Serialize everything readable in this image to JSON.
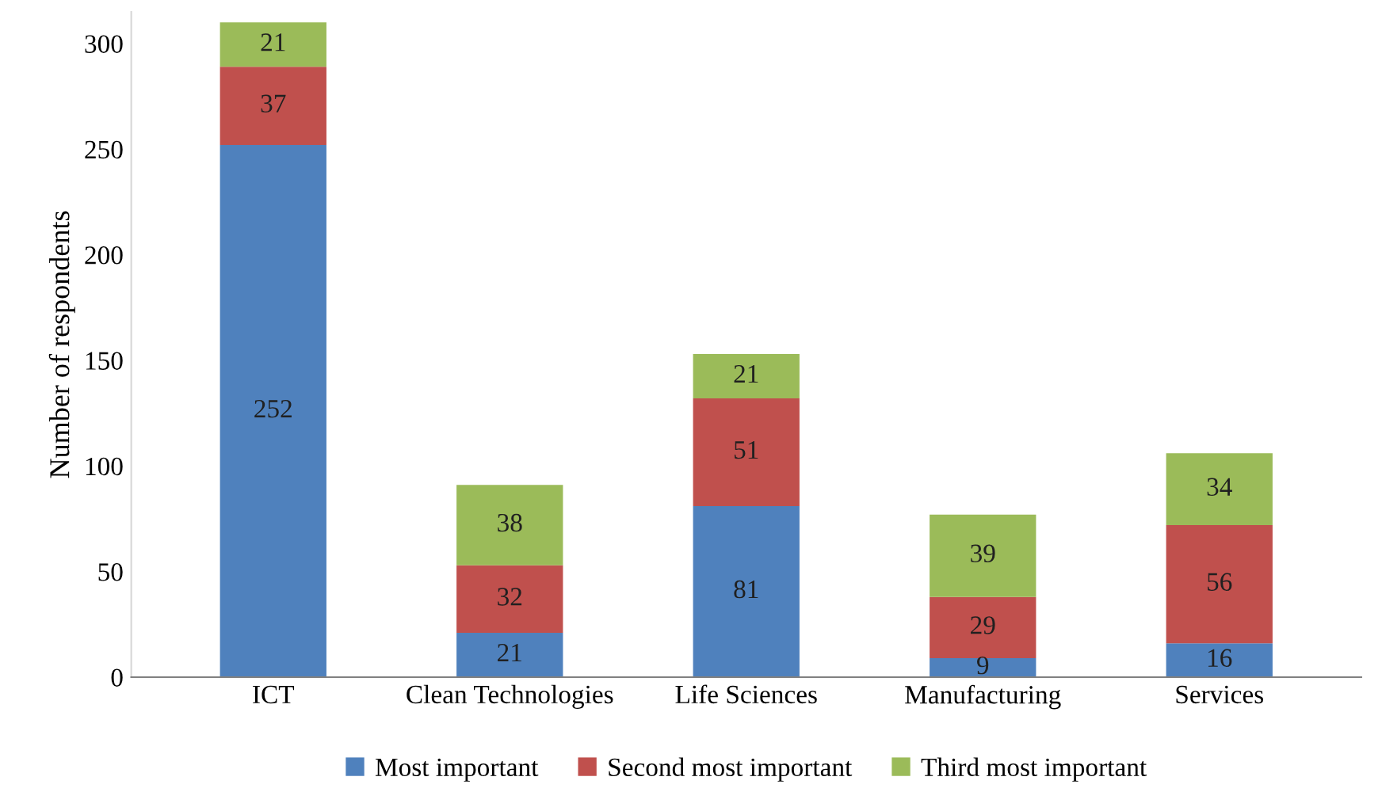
{
  "chart_data": {
    "type": "bar",
    "stacked": true,
    "ylabel": "Number of respondents",
    "categories": [
      "ICT",
      "Clean Technologies",
      "Life Sciences",
      "Manufacturing",
      "Services"
    ],
    "series": [
      {
        "name": "Most important",
        "color": "#4f81bd",
        "values": [
          252,
          21,
          81,
          9,
          16
        ]
      },
      {
        "name": "Second most important",
        "color": "#c0504d",
        "values": [
          37,
          32,
          51,
          29,
          56
        ]
      },
      {
        "name": "Third most important",
        "color": "#9bbb59",
        "values": [
          21,
          38,
          21,
          39,
          34
        ]
      }
    ],
    "ylim": [
      0,
      315
    ],
    "yticks": [
      0,
      50,
      100,
      150,
      200,
      250,
      300
    ],
    "grid": false,
    "legend": "bottom",
    "data_labels": true
  }
}
